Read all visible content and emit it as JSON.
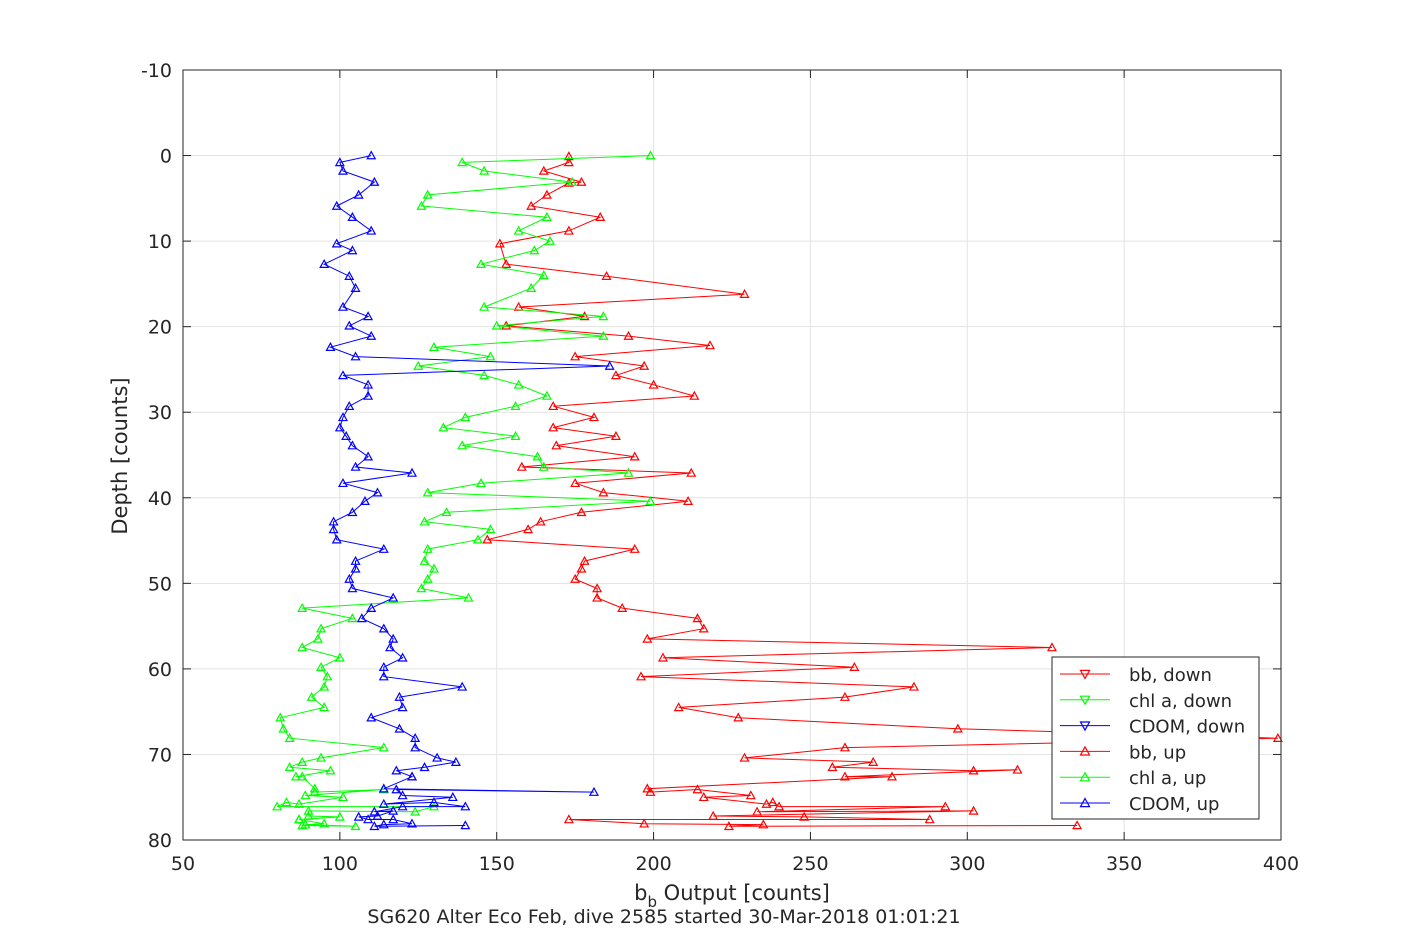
{
  "chart_data": {
    "type": "line",
    "xlabel": "b",
    "xlabel_sub": "b",
    "xlabel_rest": " Output [counts]",
    "ylabel": "Depth [counts]",
    "caption": "SG620 Alter Eco Feb, dive 2585 started 30-Mar-2018 01:01:21",
    "xlim": [
      50,
      400
    ],
    "ylim": [
      -10,
      80
    ],
    "y_reversed": true,
    "xticks": [
      50,
      100,
      150,
      200,
      250,
      300,
      350,
      400
    ],
    "yticks": [
      -10,
      0,
      10,
      20,
      30,
      40,
      50,
      60,
      70,
      80
    ],
    "grid": true,
    "legend_position": "bottom-right",
    "series": [
      {
        "name": "bb, down",
        "color": "#ff0000",
        "marker": "triangle-down",
        "points": []
      },
      {
        "name": "chl a, down",
        "color": "#00ff00",
        "marker": "triangle-down",
        "points": []
      },
      {
        "name": "CDOM, down",
        "color": "#0000ff",
        "marker": "triangle-down",
        "points": []
      },
      {
        "name": "bb, up",
        "color": "#ff0000",
        "marker": "triangle-up",
        "points": [
          [
            173,
            0.1
          ],
          [
            173,
            0.8
          ],
          [
            165,
            1.8
          ],
          [
            177,
            3.1
          ],
          [
            173,
            3.2
          ],
          [
            166,
            4.6
          ],
          [
            161,
            5.9
          ],
          [
            183,
            7.2
          ],
          [
            173,
            8.8
          ],
          [
            151,
            10.3
          ],
          [
            153,
            12.7
          ],
          [
            185,
            14.1
          ],
          [
            229,
            16.2
          ],
          [
            157,
            17.7
          ],
          [
            178,
            18.8
          ],
          [
            153,
            19.9
          ],
          [
            192,
            21.1
          ],
          [
            218,
            22.2
          ],
          [
            175,
            23.5
          ],
          [
            197,
            24.6
          ],
          [
            188,
            25.7
          ],
          [
            200,
            26.8
          ],
          [
            213,
            28.1
          ],
          [
            168,
            29.3
          ],
          [
            181,
            30.6
          ],
          [
            168,
            31.8
          ],
          [
            188,
            32.8
          ],
          [
            169,
            33.9
          ],
          [
            194,
            35.2
          ],
          [
            158,
            36.4
          ],
          [
            212,
            37.1
          ],
          [
            175,
            38.3
          ],
          [
            184,
            39.4
          ],
          [
            211,
            40.4
          ],
          [
            177,
            41.7
          ],
          [
            164,
            42.8
          ],
          [
            160,
            43.7
          ],
          [
            147,
            44.9
          ],
          [
            194,
            46.0
          ],
          [
            178,
            47.4
          ],
          [
            177,
            48.3
          ],
          [
            175,
            49.5
          ],
          [
            182,
            50.6
          ],
          [
            182,
            51.7
          ],
          [
            190,
            52.9
          ],
          [
            214,
            54.1
          ],
          [
            216,
            55.3
          ],
          [
            198,
            56.5
          ],
          [
            327,
            57.5
          ],
          [
            203,
            58.7
          ],
          [
            264,
            59.8
          ],
          [
            196,
            60.9
          ],
          [
            283,
            62.1
          ],
          [
            261,
            63.3
          ],
          [
            208,
            64.5
          ],
          [
            227,
            65.7
          ],
          [
            297,
            67.0
          ],
          [
            399,
            68.1
          ],
          [
            261,
            69.2
          ],
          [
            229,
            70.4
          ],
          [
            270,
            70.9
          ],
          [
            257,
            71.5
          ],
          [
            302,
            71.9
          ],
          [
            316,
            71.8
          ],
          [
            261,
            72.6
          ],
          [
            276,
            72.6
          ],
          [
            198,
            74.0
          ],
          [
            199,
            74.4
          ],
          [
            214,
            74.1
          ],
          [
            231,
            74.8
          ],
          [
            216,
            75.0
          ],
          [
            236,
            75.8
          ],
          [
            238,
            75.6
          ],
          [
            240,
            76.1
          ],
          [
            293,
            76.1
          ],
          [
            233,
            76.7
          ],
          [
            302,
            76.6
          ],
          [
            219,
            77.2
          ],
          [
            248,
            77.3
          ],
          [
            288,
            77.6
          ],
          [
            173,
            77.6
          ],
          [
            197,
            78.1
          ],
          [
            235,
            78.2
          ],
          [
            224,
            78.4
          ],
          [
            335,
            78.3
          ]
        ]
      },
      {
        "name": "chl a, up",
        "color": "#00ff00",
        "marker": "triangle-up",
        "points": [
          [
            199,
            0.0
          ],
          [
            139,
            0.8
          ],
          [
            146,
            1.8
          ],
          [
            174,
            3.1
          ],
          [
            128,
            4.6
          ],
          [
            126,
            5.9
          ],
          [
            166,
            7.2
          ],
          [
            157,
            8.8
          ],
          [
            167,
            10.0
          ],
          [
            162,
            11.1
          ],
          [
            145,
            12.7
          ],
          [
            165,
            14.0
          ],
          [
            161,
            15.5
          ],
          [
            146,
            17.7
          ],
          [
            184,
            18.8
          ],
          [
            150,
            19.9
          ],
          [
            184,
            21.1
          ],
          [
            130,
            22.4
          ],
          [
            148,
            23.5
          ],
          [
            125,
            24.6
          ],
          [
            146,
            25.7
          ],
          [
            157,
            26.8
          ],
          [
            166,
            28.1
          ],
          [
            156,
            29.3
          ],
          [
            140,
            30.6
          ],
          [
            133,
            31.8
          ],
          [
            156,
            32.8
          ],
          [
            139,
            33.9
          ],
          [
            163,
            35.2
          ],
          [
            165,
            36.4
          ],
          [
            192,
            37.1
          ],
          [
            145,
            38.3
          ],
          [
            128,
            39.4
          ],
          [
            199,
            40.4
          ],
          [
            134,
            41.7
          ],
          [
            127,
            42.8
          ],
          [
            148,
            43.7
          ],
          [
            144,
            44.9
          ],
          [
            128,
            46.0
          ],
          [
            127,
            47.4
          ],
          [
            130,
            48.3
          ],
          [
            128,
            49.5
          ],
          [
            126,
            50.6
          ],
          [
            141,
            51.7
          ],
          [
            88,
            52.9
          ],
          [
            104,
            54.1
          ],
          [
            94,
            55.3
          ],
          [
            93,
            56.5
          ],
          [
            88,
            57.5
          ],
          [
            100,
            58.7
          ],
          [
            94,
            59.8
          ],
          [
            96,
            60.9
          ],
          [
            95,
            62.1
          ],
          [
            91,
            63.3
          ],
          [
            95,
            64.5
          ],
          [
            81,
            65.7
          ],
          [
            82,
            67.0
          ],
          [
            84,
            68.1
          ],
          [
            114,
            69.2
          ],
          [
            94,
            70.4
          ],
          [
            88,
            70.9
          ],
          [
            84,
            71.5
          ],
          [
            97,
            71.9
          ],
          [
            86,
            72.6
          ],
          [
            88,
            72.6
          ],
          [
            92,
            74.0
          ],
          [
            92,
            74.4
          ],
          [
            114,
            74.1
          ],
          [
            89,
            74.8
          ],
          [
            101,
            75.0
          ],
          [
            87,
            75.8
          ],
          [
            83,
            75.6
          ],
          [
            80,
            76.1
          ],
          [
            130,
            76.1
          ],
          [
            124,
            76.7
          ],
          [
            90,
            76.6
          ],
          [
            90,
            77.2
          ],
          [
            100,
            77.3
          ],
          [
            87,
            77.6
          ],
          [
            87,
            77.6
          ],
          [
            95,
            78.1
          ],
          [
            89,
            78.2
          ],
          [
            105,
            78.4
          ],
          [
            88,
            78.3
          ]
        ]
      },
      {
        "name": "CDOM, up",
        "color": "#0000ff",
        "marker": "triangle-up",
        "points": [
          [
            110,
            0.0
          ],
          [
            100,
            0.8
          ],
          [
            101,
            1.8
          ],
          [
            111,
            3.1
          ],
          [
            106,
            4.6
          ],
          [
            99,
            5.9
          ],
          [
            104,
            7.2
          ],
          [
            110,
            8.8
          ],
          [
            99,
            10.3
          ],
          [
            104,
            11.1
          ],
          [
            95,
            12.7
          ],
          [
            103,
            14.1
          ],
          [
            105,
            15.5
          ],
          [
            101,
            17.7
          ],
          [
            109,
            18.8
          ],
          [
            103,
            19.9
          ],
          [
            110,
            21.1
          ],
          [
            97,
            22.4
          ],
          [
            105,
            23.5
          ],
          [
            186,
            24.6
          ],
          [
            101,
            25.7
          ],
          [
            109,
            26.8
          ],
          [
            109,
            28.1
          ],
          [
            103,
            29.3
          ],
          [
            101,
            30.6
          ],
          [
            100,
            31.8
          ],
          [
            102,
            32.8
          ],
          [
            104,
            33.9
          ],
          [
            109,
            35.2
          ],
          [
            105,
            36.4
          ],
          [
            123,
            37.1
          ],
          [
            101,
            38.3
          ],
          [
            112,
            39.4
          ],
          [
            108,
            40.4
          ],
          [
            104,
            41.7
          ],
          [
            98,
            42.8
          ],
          [
            98,
            43.7
          ],
          [
            99,
            44.9
          ],
          [
            114,
            46.0
          ],
          [
            105,
            47.4
          ],
          [
            105,
            48.3
          ],
          [
            103,
            49.5
          ],
          [
            104,
            50.6
          ],
          [
            117,
            51.7
          ],
          [
            110,
            52.9
          ],
          [
            107,
            54.1
          ],
          [
            114,
            55.3
          ],
          [
            117,
            56.5
          ],
          [
            116,
            57.5
          ],
          [
            120,
            58.7
          ],
          [
            114,
            59.8
          ],
          [
            114,
            60.9
          ],
          [
            139,
            62.1
          ],
          [
            119,
            63.3
          ],
          [
            120,
            64.5
          ],
          [
            110,
            65.7
          ],
          [
            119,
            67.0
          ],
          [
            124,
            68.1
          ],
          [
            124,
            69.2
          ],
          [
            131,
            70.4
          ],
          [
            137,
            70.9
          ],
          [
            127,
            71.5
          ],
          [
            118,
            71.9
          ],
          [
            123,
            72.6
          ],
          [
            123,
            72.6
          ],
          [
            114,
            74.0
          ],
          [
            181,
            74.4
          ],
          [
            118,
            74.1
          ],
          [
            120,
            74.8
          ],
          [
            136,
            75.0
          ],
          [
            114,
            75.8
          ],
          [
            130,
            75.6
          ],
          [
            140,
            76.1
          ],
          [
            120,
            76.1
          ],
          [
            111,
            76.7
          ],
          [
            117,
            76.6
          ],
          [
            112,
            77.2
          ],
          [
            106,
            77.3
          ],
          [
            109,
            77.6
          ],
          [
            117,
            77.6
          ],
          [
            123,
            78.1
          ],
          [
            114,
            78.2
          ],
          [
            111,
            78.4
          ],
          [
            140,
            78.3
          ]
        ]
      }
    ]
  }
}
